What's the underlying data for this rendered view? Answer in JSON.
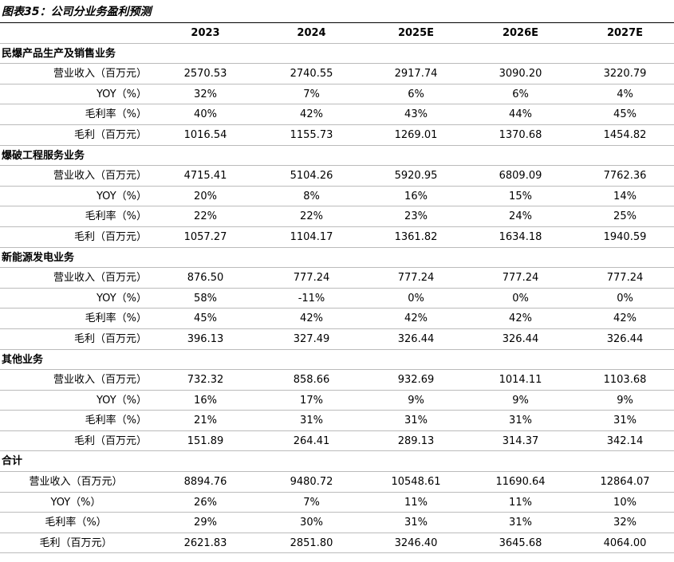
{
  "title": "图表35：公司分业务盈利预测",
  "table": {
    "columns": [
      "2023",
      "2024",
      "2025E",
      "2026E",
      "2027E"
    ],
    "sections": [
      {
        "name": "民爆产品生产及销售业务",
        "rows": [
          [
            "营业收入（百万元）",
            "2570.53",
            "2740.55",
            "2917.74",
            "3090.20",
            "3220.79"
          ],
          [
            "YOY（%）",
            "32%",
            "7%",
            "6%",
            "6%",
            "4%"
          ],
          [
            "毛利率（%）",
            "40%",
            "42%",
            "43%",
            "44%",
            "45%"
          ],
          [
            "毛利（百万元）",
            "1016.54",
            "1155.73",
            "1269.01",
            "1370.68",
            "1454.82"
          ]
        ]
      },
      {
        "name": "爆破工程服务业务",
        "rows": [
          [
            "营业收入（百万元）",
            "4715.41",
            "5104.26",
            "5920.95",
            "6809.09",
            "7762.36"
          ],
          [
            "YOY（%）",
            "20%",
            "8%",
            "16%",
            "15%",
            "14%"
          ],
          [
            "毛利率（%）",
            "22%",
            "22%",
            "23%",
            "24%",
            "25%"
          ],
          [
            "毛利（百万元）",
            "1057.27",
            "1104.17",
            "1361.82",
            "1634.18",
            "1940.59"
          ]
        ]
      },
      {
        "name": "新能源发电业务",
        "rows": [
          [
            "营业收入（百万元）",
            "876.50",
            "777.24",
            "777.24",
            "777.24",
            "777.24"
          ],
          [
            "YOY（%）",
            "58%",
            "-11%",
            "0%",
            "0%",
            "0%"
          ],
          [
            "毛利率（%）",
            "45%",
            "42%",
            "42%",
            "42%",
            "42%"
          ],
          [
            "毛利（百万元）",
            "396.13",
            "327.49",
            "326.44",
            "326.44",
            "326.44"
          ]
        ]
      },
      {
        "name": "其他业务",
        "rows": [
          [
            "营业收入（百万元）",
            "732.32",
            "858.66",
            "932.69",
            "1014.11",
            "1103.68"
          ],
          [
            "YOY（%）",
            "16%",
            "17%",
            "9%",
            "9%",
            "9%"
          ],
          [
            "毛利率（%）",
            "21%",
            "31%",
            "31%",
            "31%",
            "31%"
          ],
          [
            "毛利（百万元）",
            "151.89",
            "264.41",
            "289.13",
            "314.37",
            "342.14"
          ]
        ]
      },
      {
        "name": "合计",
        "total": true,
        "rows": [
          [
            "营业收入（百万元）",
            "8894.76",
            "9480.72",
            "10548.61",
            "11690.64",
            "12864.07"
          ],
          [
            "YOY（%）",
            "26%",
            "7%",
            "11%",
            "11%",
            "10%"
          ],
          [
            "毛利率（%）",
            "29%",
            "30%",
            "31%",
            "31%",
            "32%"
          ],
          [
            "毛利（百万元）",
            "2621.83",
            "2851.80",
            "3246.40",
            "3645.68",
            "4064.00"
          ]
        ]
      }
    ]
  }
}
